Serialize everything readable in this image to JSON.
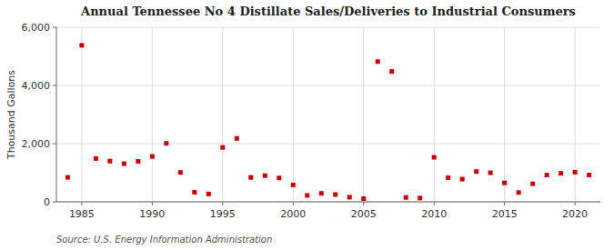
{
  "chart_data": {
    "type": "scatter",
    "title": "Annual Tennessee No 4 Distillate Sales/Deliveries to Industrial Consumers",
    "ylabel": "Thousand Gallons",
    "annotations": [
      "Source: U.S. Energy Information Administration"
    ],
    "color": "#cc0000",
    "marker": "square",
    "grid": true,
    "xlim": [
      1983.2,
      2021.8
    ],
    "ylim": [
      0,
      6000
    ],
    "xticks": [
      1985,
      1990,
      1995,
      2000,
      2005,
      2010,
      2015,
      2020
    ],
    "yticks": [
      0,
      {
        "value": 2000,
        "label": "2,000"
      },
      {
        "value": 4000,
        "label": "4,000"
      },
      {
        "value": 6000,
        "label": "6,000"
      }
    ],
    "x": [
      1984,
      1985,
      1986,
      1987,
      1988,
      1989,
      1990,
      1991,
      1992,
      1993,
      1994,
      1995,
      1996,
      1997,
      1998,
      1999,
      2000,
      2001,
      2002,
      2003,
      2004,
      2005,
      2006,
      2007,
      2008,
      2009,
      2010,
      2011,
      2012,
      2013,
      2014,
      2015,
      2016,
      2017,
      2018,
      2019,
      2020,
      2021
    ],
    "values": [
      840,
      5380,
      1490,
      1400,
      1310,
      1390,
      1560,
      2010,
      1010,
      330,
      270,
      1870,
      2180,
      840,
      900,
      820,
      580,
      220,
      290,
      250,
      160,
      110,
      4820,
      4480,
      150,
      130,
      1530,
      830,
      780,
      1040,
      1000,
      650,
      320,
      620,
      920,
      980,
      1020,
      920
    ]
  }
}
